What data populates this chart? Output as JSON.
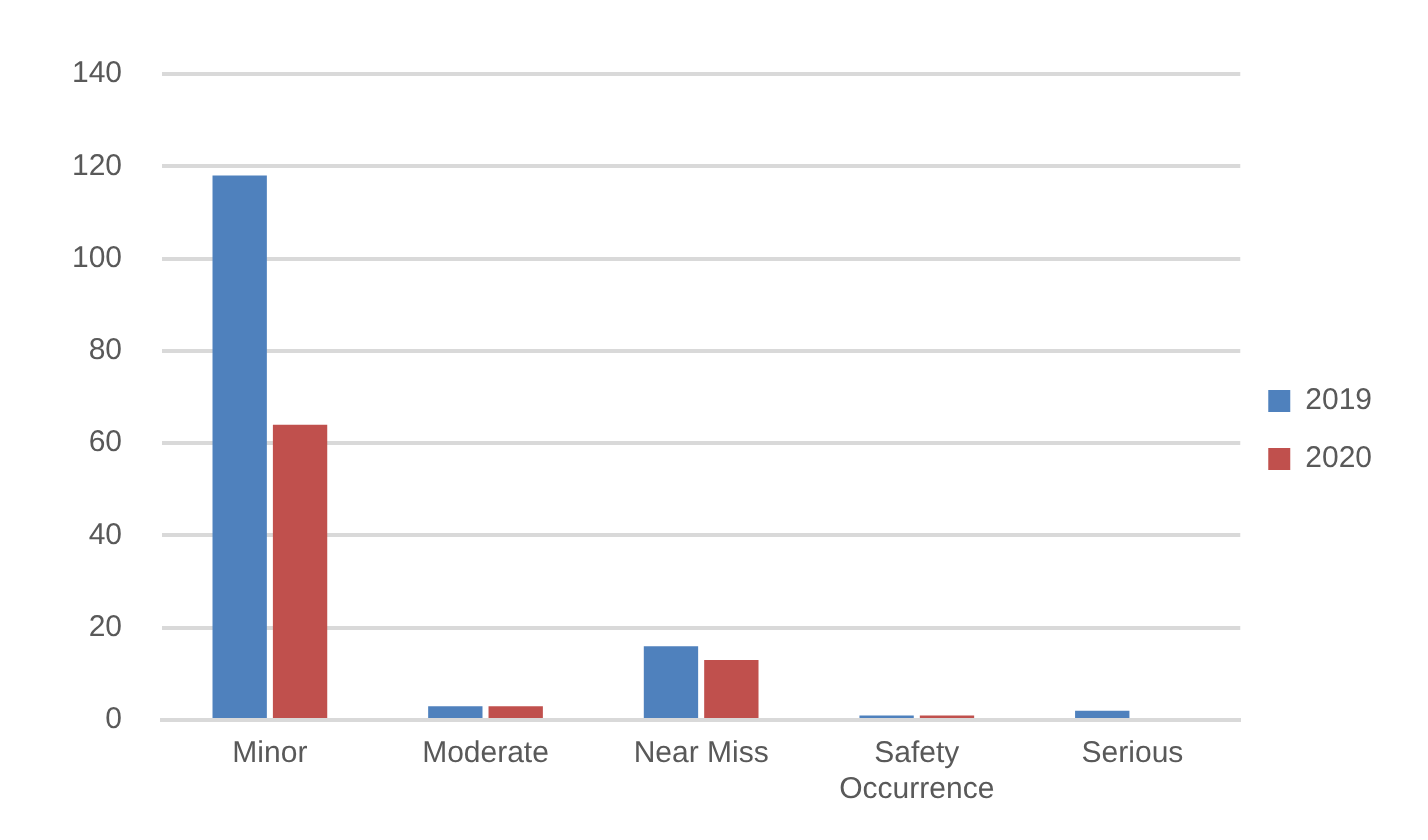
{
  "chart_data": {
    "type": "bar",
    "categories": [
      "Minor",
      "Moderate",
      "Near Miss",
      "Safety Occurrence",
      "Serious"
    ],
    "series": [
      {
        "name": "2019",
        "color": "#4f81bd",
        "values": [
          118,
          3,
          16,
          1,
          2
        ]
      },
      {
        "name": "2020",
        "color": "#c0504d",
        "values": [
          64,
          3,
          13,
          1,
          0
        ]
      }
    ],
    "ylim": [
      0,
      140
    ],
    "yticks": [
      0,
      20,
      40,
      60,
      80,
      100,
      120,
      140
    ],
    "grid": "y",
    "legend": "right"
  }
}
